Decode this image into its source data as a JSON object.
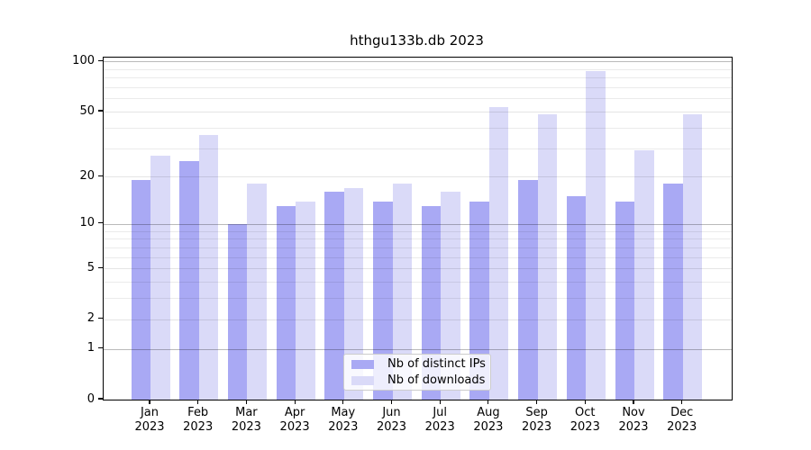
{
  "chart_data": {
    "type": "bar",
    "title": "hthgu133b.db 2023",
    "categories": [
      "Jan",
      "Feb",
      "Mar",
      "Apr",
      "May",
      "Jun",
      "Jul",
      "Aug",
      "Sep",
      "Oct",
      "Nov",
      "Dec"
    ],
    "category_year": "2023",
    "series": [
      {
        "name": "Nb of distinct IPs",
        "color": "#a9a9f4",
        "values": [
          19,
          25,
          10,
          13,
          16,
          14,
          13,
          14,
          19,
          15,
          14,
          18
        ]
      },
      {
        "name": "Nb of downloads",
        "color": "#dadaf8",
        "values": [
          27,
          36,
          18,
          14,
          17,
          18,
          16,
          53,
          48,
          88,
          29,
          48
        ]
      }
    ],
    "y_axis": {
      "scale": "log1p",
      "major_ticks": [
        0,
        1,
        2,
        5,
        10,
        20,
        50,
        100
      ],
      "minor_ticks": [
        3,
        4,
        6,
        7,
        8,
        9,
        30,
        40,
        60,
        70,
        80,
        90
      ],
      "decade_ticks": [
        1,
        10,
        100
      ],
      "ylim": [
        0,
        105
      ]
    },
    "xlabel": "",
    "ylabel": "",
    "grid": true,
    "legend_position": "bottom-center"
  }
}
